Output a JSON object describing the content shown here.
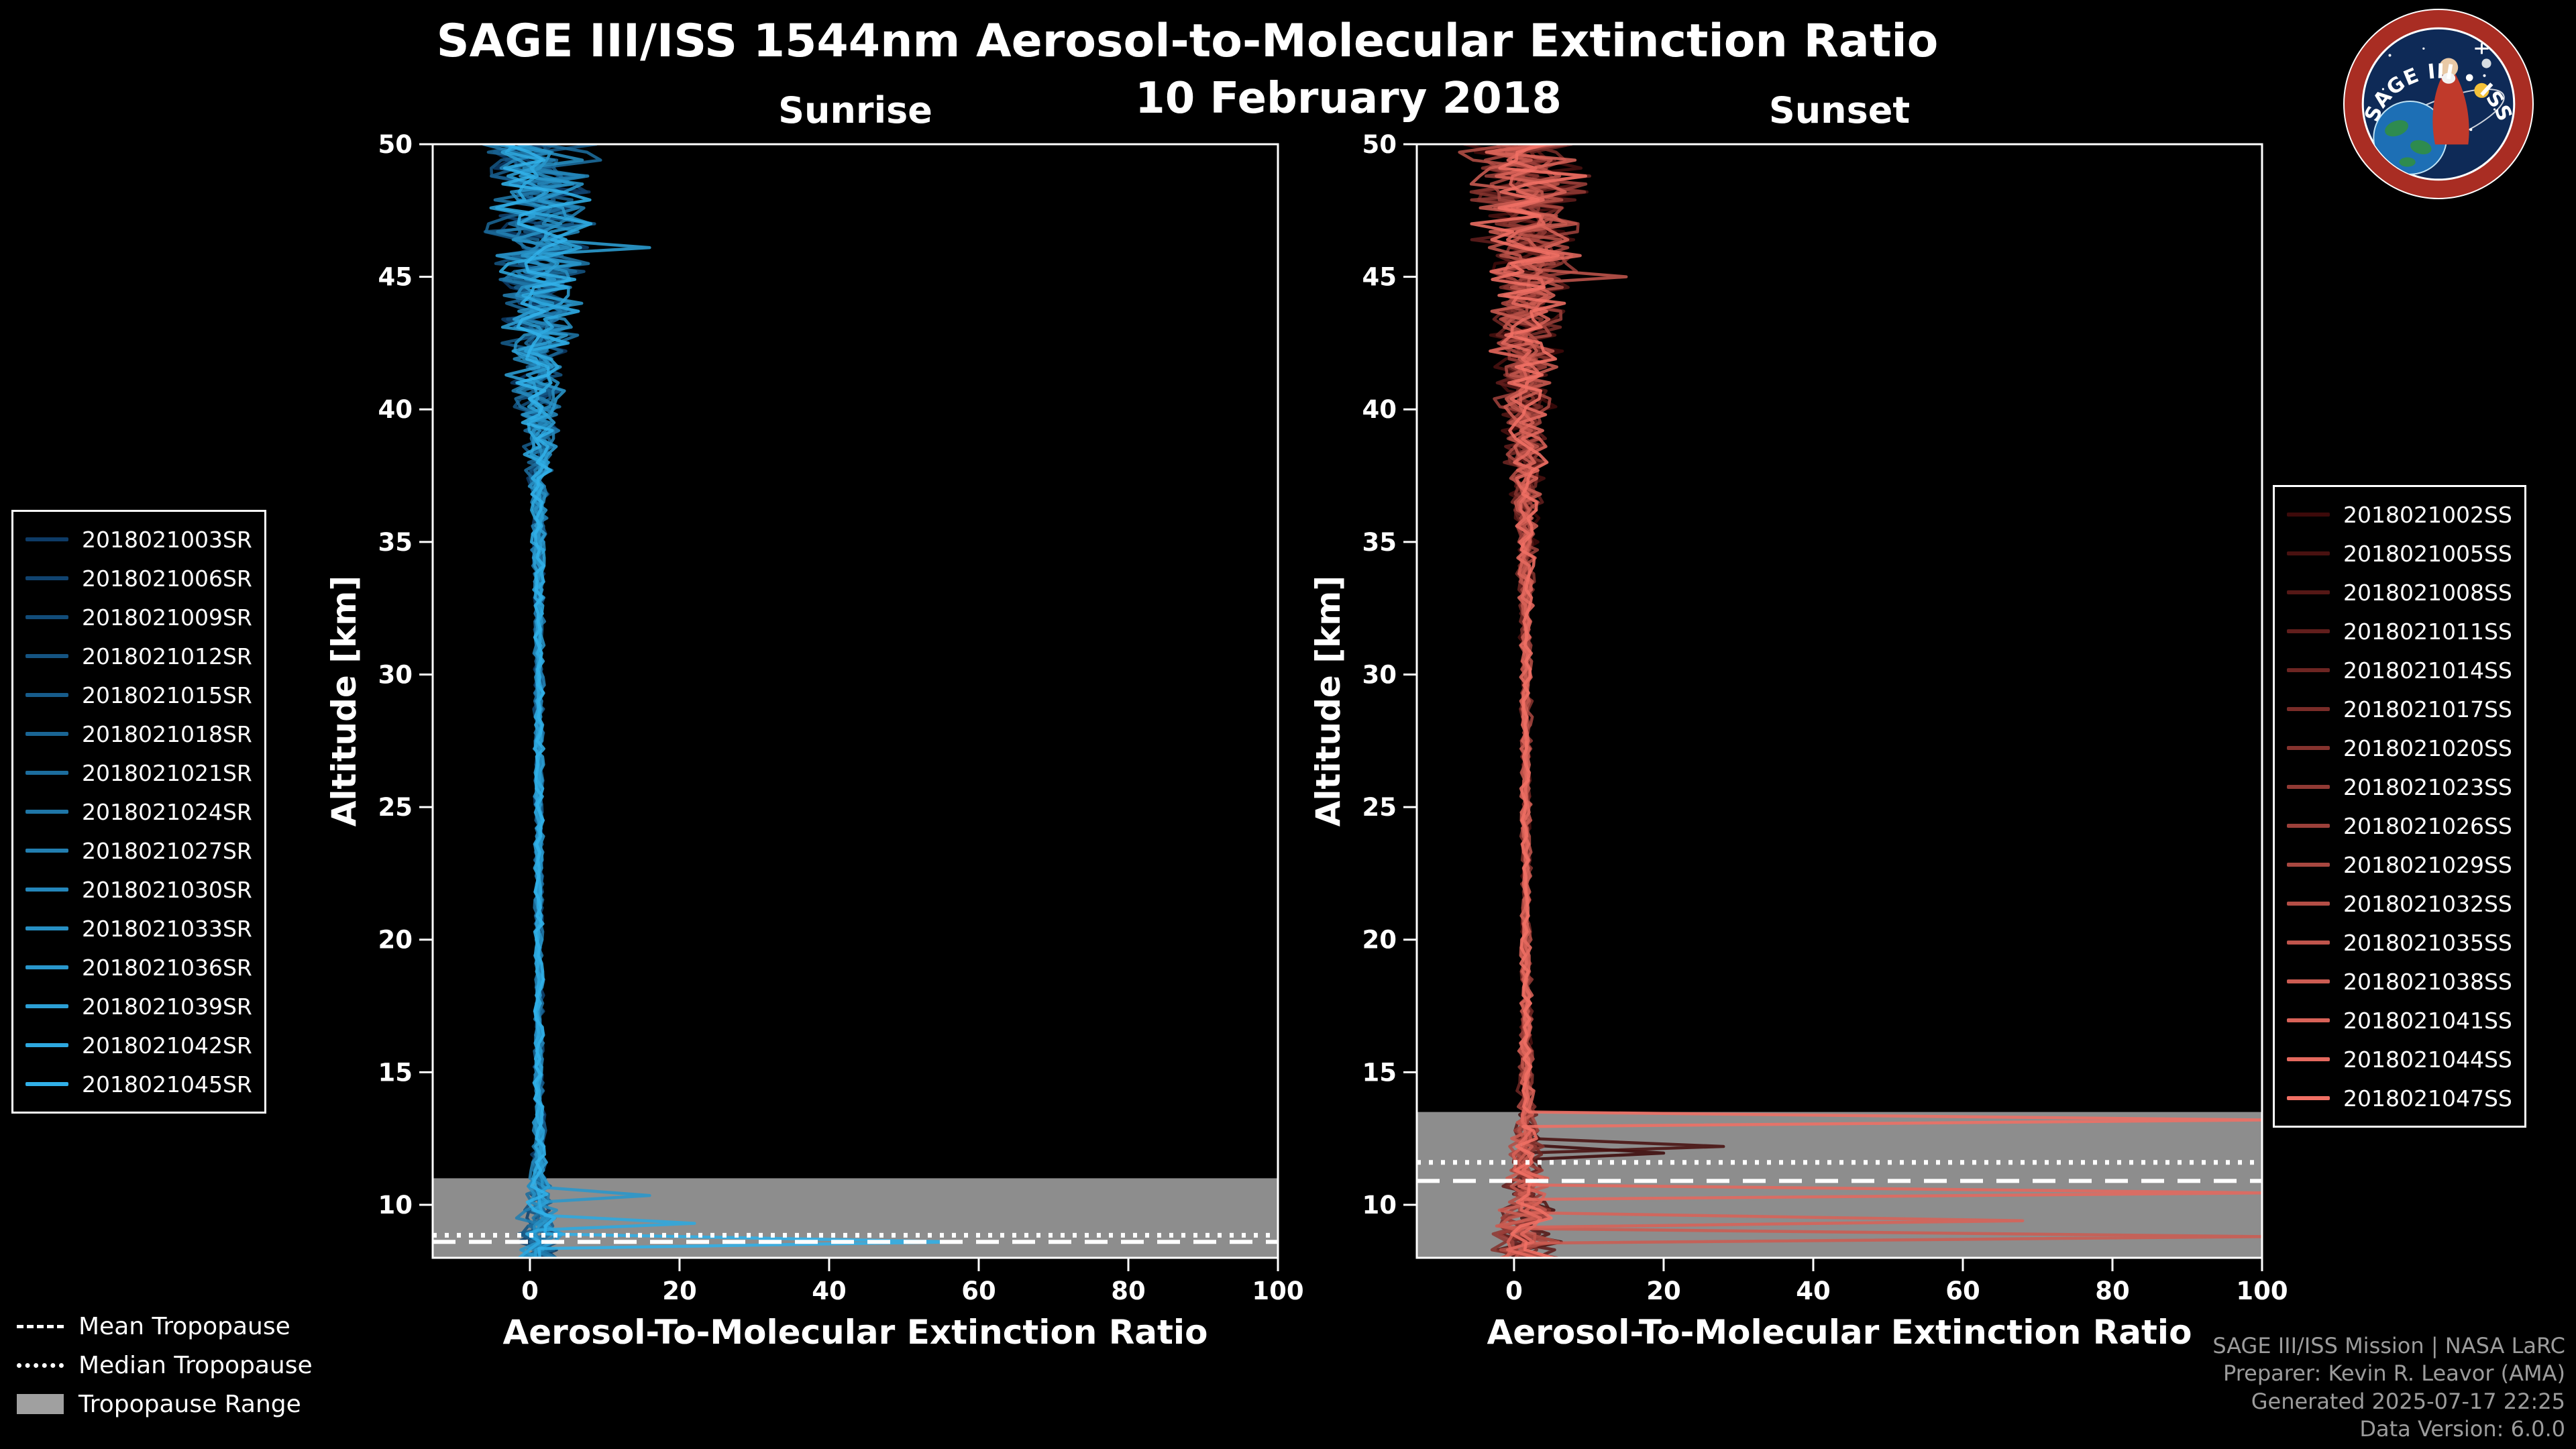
{
  "title": "SAGE III/ISS 1544nm Aerosol-to-Molecular Extinction Ratio",
  "subtitle": "10 February 2018",
  "logo": {
    "title": "SAGE III • ISS"
  },
  "tropopause_legend": {
    "items": [
      {
        "label": "Mean Tropopause",
        "style": "dashed"
      },
      {
        "label": "Median Tropopause",
        "style": "dotted"
      },
      {
        "label": "Tropopause Range",
        "style": "range"
      }
    ]
  },
  "attribution": {
    "lines": [
      "SAGE III/ISS Mission | NASA LaRC",
      "Preparer: Kevin R. Leavor (AMA)",
      "Generated 2025-07-17 22:25",
      "Data Version: 6.0.0"
    ]
  },
  "chart_data": [
    {
      "id": "sunrise",
      "type": "line",
      "title": "Sunrise",
      "xlabel": "Aerosol-To-Molecular Extinction Ratio",
      "ylabel": "Altitude [km]",
      "xlim": [
        -13,
        100
      ],
      "ylim": [
        8,
        50
      ],
      "x_ticks": [
        0,
        20,
        40,
        60,
        80,
        100
      ],
      "y_ticks": [
        10,
        15,
        20,
        25,
        30,
        35,
        40,
        45,
        50
      ],
      "grid": false,
      "tropopause": {
        "mean_km": 8.6,
        "median_km": 8.85,
        "range_km": [
          8,
          11.0
        ]
      },
      "band_color": "#a0a0a0",
      "profile_model": {
        "center": 1.2,
        "spread_by_alt": [
          [
            8,
            2.6
          ],
          [
            9,
            2.6
          ],
          [
            10,
            1.9
          ],
          [
            11,
            1.2
          ],
          [
            12,
            0.8
          ],
          [
            14,
            0.55
          ],
          [
            20,
            0.45
          ],
          [
            28,
            0.5
          ],
          [
            33,
            0.6
          ],
          [
            36,
            0.9
          ],
          [
            38,
            1.6
          ],
          [
            40,
            2.6
          ],
          [
            42,
            3.6
          ],
          [
            44,
            4.6
          ],
          [
            46,
            5.4
          ],
          [
            48,
            6.2
          ],
          [
            50,
            7.0
          ]
        ]
      },
      "cloud_spikes": [
        {
          "series": 11,
          "alt": 10.35,
          "peak": 16
        },
        {
          "series": 13,
          "alt": 9.3,
          "peak": 22
        },
        {
          "series": 14,
          "alt": 8.6,
          "peak": 57
        },
        {
          "series": 12,
          "alt": 46.1,
          "peak": 16
        }
      ],
      "series": [
        {
          "name": "2018021003SR",
          "color": "#0d3b66",
          "seed": 3
        },
        {
          "name": "2018021006SR",
          "color": "#10436f",
          "seed": 6
        },
        {
          "name": "2018021009SR",
          "color": "#124c79",
          "seed": 9
        },
        {
          "name": "2018021012SR",
          "color": "#155482",
          "seed": 12
        },
        {
          "name": "2018021015SR",
          "color": "#175c8b",
          "seed": 15
        },
        {
          "name": "2018021018SR",
          "color": "#1a6594",
          "seed": 18
        },
        {
          "name": "2018021021SR",
          "color": "#1c6d9e",
          "seed": 21
        },
        {
          "name": "2018021024SR",
          "color": "#1f76a7",
          "seed": 24
        },
        {
          "name": "2018021027SR",
          "color": "#227eb0",
          "seed": 27
        },
        {
          "name": "2018021030SR",
          "color": "#2486ba",
          "seed": 30
        },
        {
          "name": "2018021033SR",
          "color": "#278fc3",
          "seed": 33
        },
        {
          "name": "2018021036SR",
          "color": "#2997cc",
          "seed": 36
        },
        {
          "name": "2018021039SR",
          "color": "#2c9fd5",
          "seed": 39
        },
        {
          "name": "2018021042SR",
          "color": "#2ea8df",
          "seed": 42
        },
        {
          "name": "2018021045SR",
          "color": "#31b0e8",
          "seed": 45
        }
      ]
    },
    {
      "id": "sunset",
      "type": "line",
      "title": "Sunset",
      "xlabel": "Aerosol-To-Molecular Extinction Ratio",
      "ylabel": "Altitude [km]",
      "xlim": [
        -13,
        100
      ],
      "ylim": [
        8,
        50
      ],
      "x_ticks": [
        0,
        20,
        40,
        60,
        80,
        100
      ],
      "y_ticks": [
        10,
        15,
        20,
        25,
        30,
        35,
        40,
        45,
        50
      ],
      "grid": false,
      "tropopause": {
        "mean_km": 10.9,
        "median_km": 11.6,
        "range_km": [
          8,
          13.5
        ]
      },
      "band_color": "#a0a0a0",
      "profile_model": {
        "center": 1.6,
        "spread_by_alt": [
          [
            8,
            4.0
          ],
          [
            9,
            3.6
          ],
          [
            10,
            3.0
          ],
          [
            11,
            2.4
          ],
          [
            12,
            1.9
          ],
          [
            13,
            1.4
          ],
          [
            14,
            0.9
          ],
          [
            16,
            0.7
          ],
          [
            20,
            0.55
          ],
          [
            26,
            0.55
          ],
          [
            30,
            0.65
          ],
          [
            33,
            0.85
          ],
          [
            35,
            1.2
          ],
          [
            37,
            1.8
          ],
          [
            39,
            2.6
          ],
          [
            41,
            3.4
          ],
          [
            43,
            4.2
          ],
          [
            45,
            5.2
          ],
          [
            47,
            6.2
          ],
          [
            50,
            7.2
          ]
        ]
      },
      "cloud_spikes": [
        {
          "series": 0,
          "alt": 11.95,
          "peak": 20
        },
        {
          "series": 1,
          "alt": 12.2,
          "peak": 28
        },
        {
          "series": 15,
          "alt": 13.2,
          "peak": 100
        },
        {
          "series": 14,
          "alt": 10.45,
          "peak": 100
        },
        {
          "series": 13,
          "alt": 9.4,
          "peak": 68
        },
        {
          "series": 12,
          "alt": 8.8,
          "peak": 100
        },
        {
          "series": 11,
          "alt": 45.0,
          "peak": 15
        }
      ],
      "series": [
        {
          "name": "2018021002SS",
          "color": "#3d0a0a",
          "seed": 2
        },
        {
          "name": "2018021005SS",
          "color": "#491110",
          "seed": 5
        },
        {
          "name": "2018021008SS",
          "color": "#551816",
          "seed": 8
        },
        {
          "name": "2018021011SS",
          "color": "#611e1c",
          "seed": 11
        },
        {
          "name": "2018021014SS",
          "color": "#6d2522",
          "seed": 14
        },
        {
          "name": "2018021017SS",
          "color": "#792c28",
          "seed": 17
        },
        {
          "name": "2018021020SS",
          "color": "#85332e",
          "seed": 20
        },
        {
          "name": "2018021023SS",
          "color": "#913a34",
          "seed": 23
        },
        {
          "name": "2018021026SS",
          "color": "#9c403a",
          "seed": 26
        },
        {
          "name": "2018021029SS",
          "color": "#a84740",
          "seed": 29
        },
        {
          "name": "2018021032SS",
          "color": "#b44e46",
          "seed": 32
        },
        {
          "name": "2018021035SS",
          "color": "#c0554c",
          "seed": 35
        },
        {
          "name": "2018021038SS",
          "color": "#cc5c52",
          "seed": 38
        },
        {
          "name": "2018021041SS",
          "color": "#d86258",
          "seed": 41
        },
        {
          "name": "2018021044SS",
          "color": "#e4695e",
          "seed": 44
        },
        {
          "name": "2018021047SS",
          "color": "#f07064",
          "seed": 47
        }
      ]
    }
  ]
}
